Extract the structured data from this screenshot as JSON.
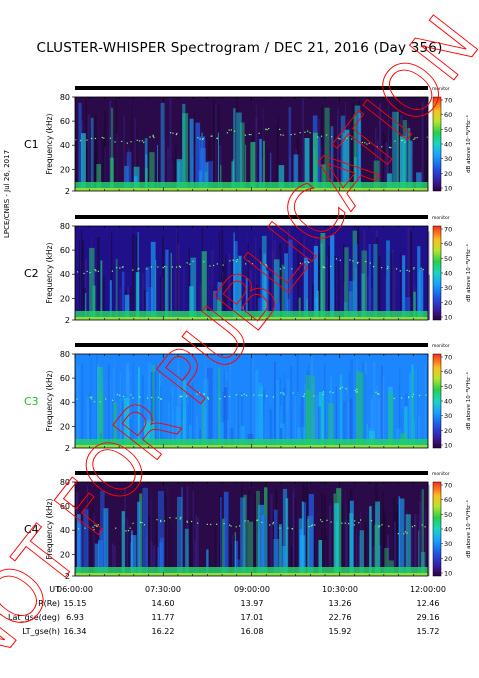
{
  "title": "CLUSTER-WHISPER Spectrogram / DEC 21, 2016 (Day 356)",
  "side_label": "LPCE/CNRS - Jul 26, 2017",
  "watermark": "NOT FOR PUBLICATION",
  "chart_data": [
    {
      "type": "heatmap",
      "panel": "C1",
      "label_color": "#000000",
      "ylabel": "Frequency (kHz)",
      "y_ticks": [
        2,
        20,
        40,
        60,
        80
      ],
      "ylim": [
        2,
        80
      ],
      "colorbar": {
        "label": "dB above 10⁻⁸V²Hz⁻¹",
        "ticks": [
          10,
          20,
          30,
          40,
          50,
          60,
          70
        ],
        "range": [
          10,
          70
        ]
      },
      "mode_tag": "monitor",
      "background": "dark-purple",
      "plasma_line_khz": [
        45,
        46,
        43,
        44,
        48,
        50,
        46,
        47,
        52,
        50,
        54,
        49,
        52,
        48,
        46,
        42,
        38,
        44,
        46
      ]
    },
    {
      "type": "heatmap",
      "panel": "C2",
      "label_color": "#000000",
      "ylabel": "Frequency (kHz)",
      "y_ticks": [
        2,
        20,
        40,
        60,
        80
      ],
      "ylim": [
        2,
        80
      ],
      "colorbar": {
        "label": "dB above 10⁻⁸V²Hz⁻¹",
        "ticks": [
          10,
          20,
          30,
          40,
          50,
          60,
          70
        ],
        "range": [
          10,
          70
        ]
      },
      "mode_tag": "monitor",
      "background": "dark-blue",
      "plasma_line_khz": [
        42,
        44,
        46,
        44,
        47,
        46,
        50,
        48,
        52,
        50,
        48,
        46,
        50,
        47,
        52,
        50,
        46,
        44,
        45
      ]
    },
    {
      "type": "heatmap",
      "panel": "C3",
      "label_color": "#22c022",
      "ylabel": "Frequency (kHz)",
      "y_ticks": [
        2,
        20,
        40,
        60,
        80
      ],
      "ylim": [
        2,
        80
      ],
      "colorbar": {
        "label": "dB above 10⁻⁸V²Hz⁻¹",
        "ticks": [
          10,
          20,
          30,
          40,
          50,
          60,
          70
        ],
        "range": [
          10,
          70
        ]
      },
      "mode_tag": "monitor",
      "background": "light-blue",
      "plasma_line_khz": [
        44,
        42,
        46,
        45,
        44,
        46,
        48,
        44,
        46,
        47,
        45,
        48,
        46,
        48,
        52,
        50,
        48,
        44,
        46
      ]
    },
    {
      "type": "heatmap",
      "panel": "C4",
      "label_color": "#000000",
      "ylabel": "Frequency (kHz)",
      "y_ticks": [
        2,
        20,
        40,
        60,
        80
      ],
      "ylim": [
        2,
        80
      ],
      "colorbar": {
        "label": "dB above 10⁻⁸V²Hz⁻¹",
        "ticks": [
          10,
          20,
          30,
          40,
          50,
          60,
          70
        ],
        "range": [
          10,
          70
        ]
      },
      "mode_tag": "monitor",
      "background": "dark-purple",
      "plasma_line_khz": [
        42,
        44,
        41,
        46,
        48,
        50,
        47,
        46,
        44,
        48,
        46,
        42,
        44,
        48,
        46,
        48,
        44,
        38,
        44
      ]
    }
  ],
  "ephemeris": {
    "rows": [
      {
        "label": "UT",
        "values": [
          "06:00:00",
          "07:30:00",
          "09:00:00",
          "10:30:00",
          "12:00:00"
        ]
      },
      {
        "label": "R(Re)",
        "values": [
          "15.15",
          "14.60",
          "13.97",
          "13.26",
          "12.46"
        ]
      },
      {
        "label": "Lat_gse(deg)",
        "values": [
          "6.93",
          "11.77",
          "17.01",
          "22.76",
          "29.16"
        ]
      },
      {
        "label": "LT_gse(h)",
        "values": [
          "16.34",
          "16.22",
          "16.08",
          "15.92",
          "15.72"
        ]
      }
    ]
  }
}
